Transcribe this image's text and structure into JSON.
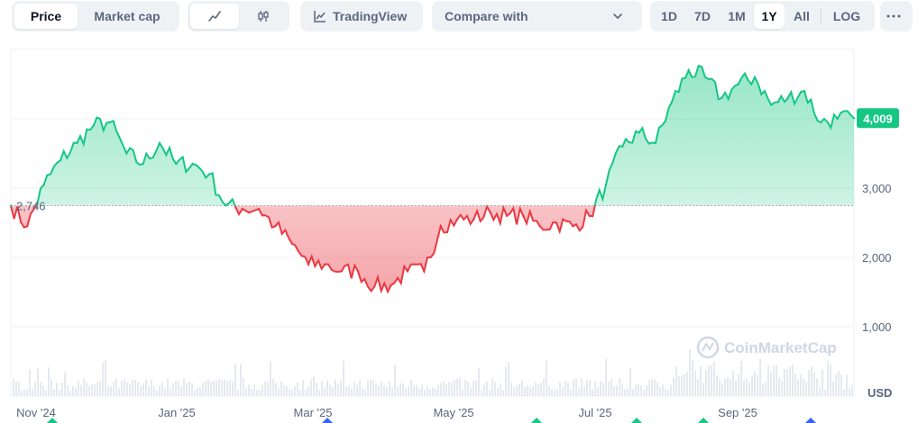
{
  "toolbar": {
    "metric_tabs": [
      {
        "label": "Price",
        "active": true
      },
      {
        "label": "Market cap",
        "active": false
      }
    ],
    "chart_types": [
      {
        "icon": "line-chart-icon",
        "active": true
      },
      {
        "icon": "candlestick-icon",
        "active": false
      }
    ],
    "tradingview_label": "TradingView",
    "compare_label": "Compare with",
    "ranges": [
      {
        "label": "1D",
        "active": false
      },
      {
        "label": "7D",
        "active": false
      },
      {
        "label": "1M",
        "active": false
      },
      {
        "label": "1Y",
        "active": true
      },
      {
        "label": "All",
        "active": false
      },
      {
        "label": "LOG",
        "active": false
      }
    ],
    "more_icon": "ellipsis-icon"
  },
  "colors": {
    "up": "#16c784",
    "down": "#ea3943",
    "accent_bg": "#eff2f5"
  },
  "watermark": "CoinMarketCap",
  "chart_data": {
    "type": "area",
    "title": "",
    "xlabel": "",
    "ylabel": "USD",
    "x_ticks": [
      "Nov '24",
      "Jan '25",
      "Mar '25",
      "May '25",
      "Jul '25",
      "Sep '25"
    ],
    "y_ticks": [
      "1,000",
      "2,000",
      "3,000"
    ],
    "ylim": [
      0,
      5000
    ],
    "baseline": {
      "value": 2746,
      "label": "2,746"
    },
    "current_price_label": "4,009",
    "grid": true,
    "series": [
      {
        "x": [
          "Nov 05 '24",
          "Nov 12 '24",
          "Nov 19 '24",
          "Nov 26 '24",
          "Dec 03 '24",
          "Dec 10 '24",
          "Dec 17 '24",
          "Dec 24 '24",
          "Dec 31 '24",
          "Jan 07 '25",
          "Jan 14 '25",
          "Jan 21 '25",
          "Jan 28 '25",
          "Feb 04 '25",
          "Feb 11 '25",
          "Feb 18 '25",
          "Feb 25 '25",
          "Mar 04 '25",
          "Mar 11 '25",
          "Mar 18 '25",
          "Mar 25 '25",
          "Apr 01 '25",
          "Apr 08 '25",
          "Apr 15 '25",
          "Apr 22 '25",
          "Apr 29 '25",
          "May 06 '25",
          "May 13 '25",
          "May 20 '25",
          "May 27 '25",
          "Jun 03 '25",
          "Jun 10 '25",
          "Jun 17 '25",
          "Jun 24 '25",
          "Jul 01 '25",
          "Jul 08 '25",
          "Jul 15 '25",
          "Jul 22 '25",
          "Jul 29 '25",
          "Aug 05 '25",
          "Aug 12 '25",
          "Aug 19 '25",
          "Aug 26 '25",
          "Sep 02 '25",
          "Sep 09 '25",
          "Sep 16 '25",
          "Sep 23 '25",
          "Sep 30 '25",
          "Oct 07 '25",
          "Oct 14 '25",
          "Oct 21 '25",
          "Oct 28 '25"
        ],
        "values": [
          2746,
          2450,
          3050,
          3400,
          3650,
          3900,
          3950,
          3500,
          3350,
          3650,
          3350,
          3350,
          3200,
          2750,
          2700,
          2700,
          2450,
          2200,
          1900,
          1900,
          1800,
          1800,
          1580,
          1600,
          1800,
          1800,
          2450,
          2550,
          2550,
          2650,
          2600,
          2600,
          2450,
          2500,
          2450,
          2600,
          3050,
          3600,
          3800,
          3650,
          4250,
          4700,
          4600,
          4300,
          4500,
          4600,
          4200,
          4300,
          4400,
          3950,
          4000,
          4009
        ]
      }
    ]
  }
}
